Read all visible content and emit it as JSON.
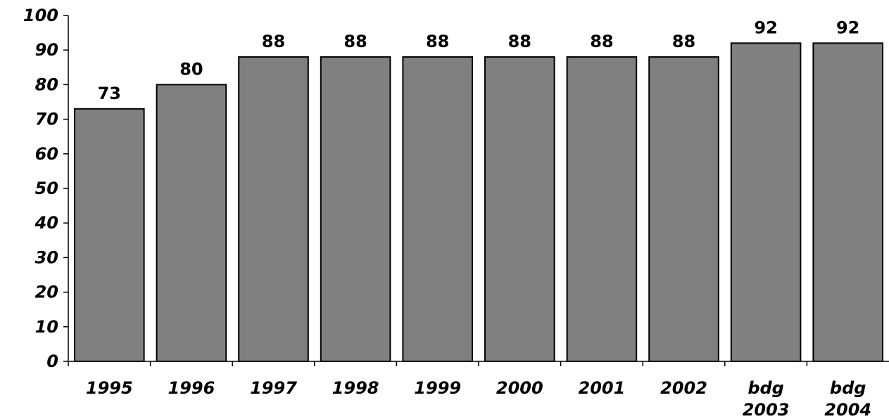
{
  "chart_data": {
    "type": "bar",
    "categories": [
      [
        "1995"
      ],
      [
        "1996"
      ],
      [
        "1997"
      ],
      [
        "1998"
      ],
      [
        "1999"
      ],
      [
        "2000"
      ],
      [
        "2001"
      ],
      [
        "2002"
      ],
      [
        "bdg",
        "2003"
      ],
      [
        "bdg",
        "2004"
      ]
    ],
    "values": [
      73,
      80,
      88,
      88,
      88,
      88,
      88,
      88,
      92,
      92
    ],
    "ylim": [
      0,
      100
    ],
    "yticks": [
      0,
      10,
      20,
      30,
      40,
      50,
      60,
      70,
      80,
      90,
      100
    ],
    "title": "",
    "xlabel": "",
    "ylabel": "",
    "grid": false,
    "legend": "none",
    "colors": {
      "bar_fill": "#808080",
      "bar_stroke": "#000000",
      "axis": "#000000",
      "text": "#000000"
    }
  }
}
